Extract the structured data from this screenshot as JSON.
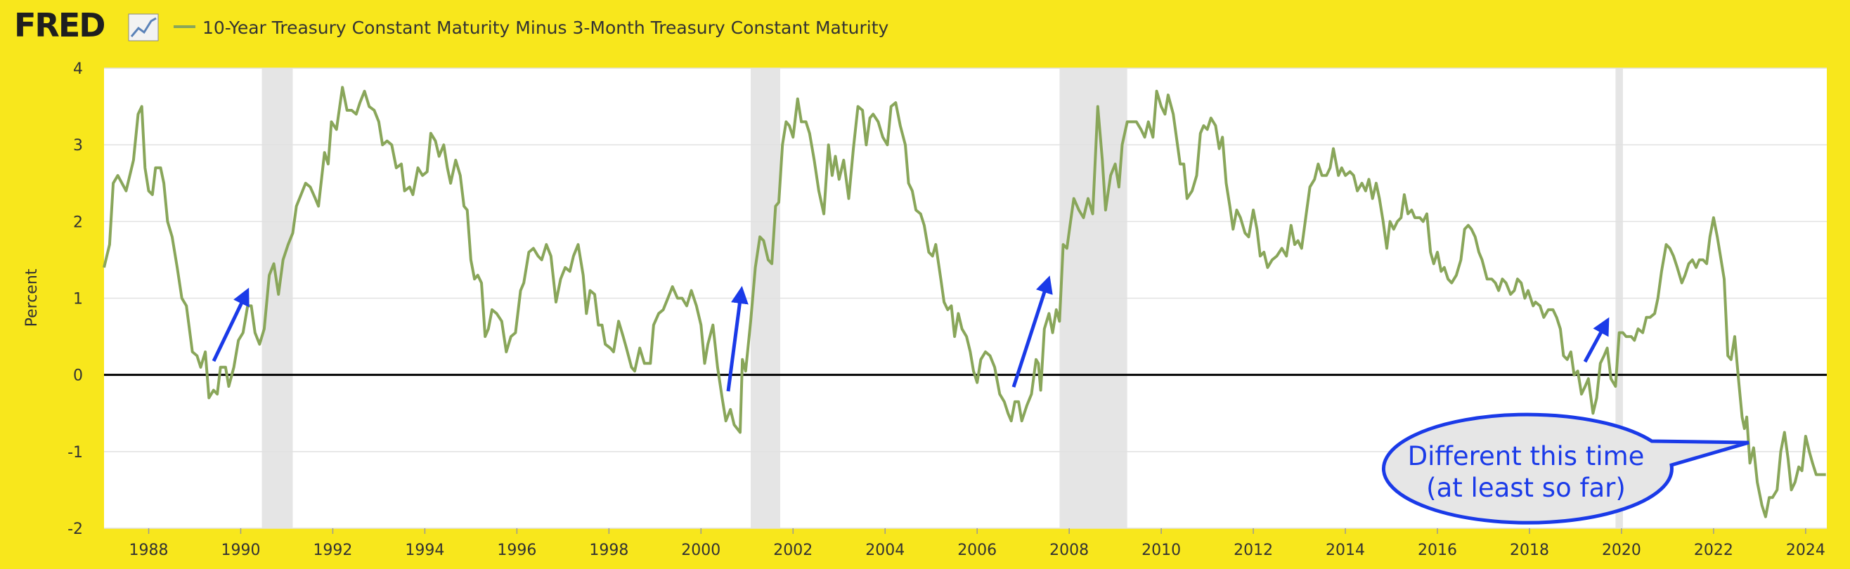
{
  "chart_data": {
    "type": "line",
    "logo": "FRED",
    "ylabel": "Percent",
    "xlim": [
      1987.03,
      2024.46
    ],
    "ylim": [
      -2,
      4
    ],
    "xticks": [
      1988,
      1990,
      1992,
      1994,
      1996,
      1998,
      2000,
      2002,
      2004,
      2006,
      2008,
      2010,
      2012,
      2014,
      2016,
      2018,
      2020,
      2022,
      2024
    ],
    "yticks": [
      -2,
      -1,
      0,
      1,
      2,
      3,
      4
    ],
    "grid": true,
    "recessions": [
      [
        1990.46,
        1991.13
      ],
      [
        2001.08,
        2001.72
      ],
      [
        2007.79,
        2009.26
      ],
      [
        2019.87,
        2020.03
      ]
    ],
    "annotations": [
      "Different this time",
      "(at least so far)"
    ],
    "series": [
      {
        "name": "10-Year Treasury Constant Maturity Minus 3-Month Treasury Constant Maturity",
        "color": "#89a65a",
        "x": [
          1987.03,
          1987.15,
          1987.23,
          1987.33,
          1987.51,
          1987.67,
          1987.77,
          1987.85,
          1987.92,
          1988.0,
          1988.08,
          1988.15,
          1988.26,
          1988.33,
          1988.41,
          1988.51,
          1988.62,
          1988.72,
          1988.82,
          1988.95,
          1989.05,
          1989.13,
          1989.23,
          1989.31,
          1989.41,
          1989.49,
          1989.56,
          1989.67,
          1989.74,
          1989.85,
          1989.95,
          1990.05,
          1990.15,
          1990.23,
          1990.31,
          1990.41,
          1990.51,
          1990.62,
          1990.72,
          1990.82,
          1990.92,
          1991.03,
          1991.13,
          1991.21,
          1991.31,
          1991.41,
          1991.51,
          1991.62,
          1991.69,
          1991.82,
          1991.9,
          1991.97,
          1992.08,
          1992.21,
          1992.31,
          1992.41,
          1992.51,
          1992.59,
          1992.69,
          1992.79,
          1992.9,
          1993.0,
          1993.08,
          1993.18,
          1993.28,
          1993.38,
          1993.49,
          1993.56,
          1993.67,
          1993.74,
          1993.85,
          1993.95,
          1994.05,
          1994.13,
          1994.23,
          1994.31,
          1994.41,
          1994.49,
          1994.56,
          1994.67,
          1994.77,
          1994.85,
          1994.92,
          1995.0,
          1995.08,
          1995.15,
          1995.23,
          1995.31,
          1995.38,
          1995.46,
          1995.56,
          1995.67,
          1995.77,
          1995.87,
          1995.97,
          1996.08,
          1996.15,
          1996.26,
          1996.36,
          1996.46,
          1996.54,
          1996.64,
          1996.74,
          1996.85,
          1996.95,
          1997.05,
          1997.15,
          1997.23,
          1997.33,
          1997.44,
          1997.51,
          1997.59,
          1997.69,
          1997.77,
          1997.85,
          1997.92,
          1998.03,
          1998.1,
          1998.21,
          1998.31,
          1998.38,
          1998.49,
          1998.56,
          1998.67,
          1998.77,
          1998.9,
          1998.97,
          1999.08,
          1999.18,
          1999.28,
          1999.38,
          1999.49,
          1999.59,
          1999.69,
          1999.79,
          1999.9,
          2000.0,
          2000.08,
          2000.15,
          2000.26,
          2000.36,
          2000.46,
          2000.54,
          2000.64,
          2000.72,
          2000.85,
          2000.9,
          2000.97,
          2001.08,
          2001.18,
          2001.28,
          2001.36,
          2001.46,
          2001.54,
          2001.62,
          2001.69,
          2001.77,
          2001.85,
          2001.92,
          2002.0,
          2002.1,
          2002.18,
          2002.28,
          2002.36,
          2002.46,
          2002.56,
          2002.67,
          2002.77,
          2002.85,
          2002.92,
          2003.0,
          2003.1,
          2003.21,
          2003.31,
          2003.41,
          2003.51,
          2003.59,
          2003.67,
          2003.74,
          2003.85,
          2003.95,
          2004.05,
          2004.13,
          2004.23,
          2004.33,
          2004.44,
          2004.51,
          2004.59,
          2004.67,
          2004.77,
          2004.85,
          2004.95,
          2005.03,
          2005.1,
          2005.21,
          2005.28,
          2005.36,
          2005.44,
          2005.51,
          2005.59,
          2005.67,
          2005.77,
          2005.85,
          2005.92,
          2006.0,
          2006.08,
          2006.18,
          2006.28,
          2006.38,
          2006.49,
          2006.59,
          2006.67,
          2006.74,
          2006.82,
          2006.9,
          2006.97,
          2007.08,
          2007.18,
          2007.28,
          2007.33,
          2007.38,
          2007.46,
          2007.56,
          2007.64,
          2007.72,
          2007.79,
          2007.87,
          2007.95,
          2008.03,
          2008.1,
          2008.21,
          2008.31,
          2008.41,
          2008.51,
          2008.62,
          2008.72,
          2008.79,
          2008.9,
          2009.0,
          2009.08,
          2009.15,
          2009.26,
          2009.36,
          2009.46,
          2009.56,
          2009.64,
          2009.72,
          2009.82,
          2009.9,
          2010.0,
          2010.08,
          2010.15,
          2010.26,
          2010.33,
          2010.41,
          2010.49,
          2010.56,
          2010.67,
          2010.77,
          2010.85,
          2010.92,
          2011.0,
          2011.08,
          2011.18,
          2011.26,
          2011.33,
          2011.41,
          2011.49,
          2011.56,
          2011.64,
          2011.72,
          2011.82,
          2011.9,
          2012.0,
          2012.08,
          2012.15,
          2012.23,
          2012.31,
          2012.41,
          2012.51,
          2012.62,
          2012.72,
          2012.82,
          2012.9,
          2012.97,
          2013.05,
          2013.15,
          2013.23,
          2013.33,
          2013.41,
          2013.49,
          2013.59,
          2013.67,
          2013.74,
          2013.85,
          2013.92,
          2014.0,
          2014.1,
          2014.18,
          2014.26,
          2014.36,
          2014.44,
          2014.51,
          2014.59,
          2014.67,
          2014.74,
          2014.82,
          2014.9,
          2014.97,
          2015.05,
          2015.13,
          2015.21,
          2015.28,
          2015.36,
          2015.44,
          2015.51,
          2015.62,
          2015.69,
          2015.77,
          2015.85,
          2015.92,
          2016.0,
          2016.08,
          2016.15,
          2016.23,
          2016.31,
          2016.41,
          2016.51,
          2016.59,
          2016.67,
          2016.74,
          2016.82,
          2016.9,
          2016.97,
          2017.08,
          2017.18,
          2017.26,
          2017.33,
          2017.41,
          2017.49,
          2017.59,
          2017.67,
          2017.74,
          2017.82,
          2017.9,
          2017.97,
          2018.08,
          2018.13,
          2018.23,
          2018.31,
          2018.41,
          2018.51,
          2018.59,
          2018.67,
          2018.74,
          2018.82,
          2018.9,
          2018.97,
          2019.05,
          2019.13,
          2019.21,
          2019.28,
          2019.38,
          2019.46,
          2019.54,
          2019.62,
          2019.69,
          2019.77,
          2019.87,
          2019.95,
          2020.03,
          2020.1,
          2020.21,
          2020.28,
          2020.36,
          2020.46,
          2020.54,
          2020.62,
          2020.72,
          2020.79,
          2020.87,
          2020.97,
          2021.05,
          2021.13,
          2021.21,
          2021.31,
          2021.38,
          2021.46,
          2021.54,
          2021.62,
          2021.69,
          2021.77,
          2021.85,
          2021.92,
          2022.0,
          2022.08,
          2022.15,
          2022.23,
          2022.31,
          2022.38,
          2022.46,
          2022.54,
          2022.62,
          2022.67,
          2022.72,
          2022.79,
          2022.87,
          2022.95,
          2023.05,
          2023.13,
          2023.21,
          2023.28,
          2023.38,
          2023.46,
          2023.54,
          2023.62,
          2023.69,
          2023.77,
          2023.85,
          2023.92,
          2024.0,
          2024.08,
          2024.15,
          2024.23,
          2024.33,
          2024.44
        ],
        "values": [
          1.4,
          1.7,
          2.5,
          2.6,
          2.4,
          2.8,
          3.4,
          3.5,
          2.7,
          2.4,
          2.35,
          2.7,
          2.7,
          2.5,
          2.0,
          1.8,
          1.4,
          1.0,
          0.9,
          0.3,
          0.25,
          0.1,
          0.3,
          -0.3,
          -0.2,
          -0.25,
          0.1,
          0.1,
          -0.15,
          0.1,
          0.45,
          0.55,
          0.9,
          0.9,
          0.55,
          0.4,
          0.6,
          1.3,
          1.45,
          1.05,
          1.5,
          1.7,
          1.85,
          2.2,
          2.35,
          2.5,
          2.45,
          2.3,
          2.2,
          2.9,
          2.75,
          3.3,
          3.2,
          3.75,
          3.45,
          3.45,
          3.4,
          3.55,
          3.7,
          3.5,
          3.45,
          3.3,
          3.0,
          3.05,
          3.0,
          2.7,
          2.75,
          2.4,
          2.45,
          2.35,
          2.7,
          2.6,
          2.65,
          3.15,
          3.05,
          2.85,
          3.0,
          2.7,
          2.5,
          2.8,
          2.6,
          2.2,
          2.15,
          1.5,
          1.25,
          1.3,
          1.2,
          0.5,
          0.6,
          0.85,
          0.8,
          0.7,
          0.3,
          0.5,
          0.55,
          1.1,
          1.2,
          1.6,
          1.65,
          1.55,
          1.5,
          1.7,
          1.55,
          0.95,
          1.25,
          1.4,
          1.35,
          1.55,
          1.7,
          1.3,
          0.8,
          1.1,
          1.05,
          0.65,
          0.65,
          0.4,
          0.35,
          0.3,
          0.7,
          0.5,
          0.35,
          0.1,
          0.05,
          0.35,
          0.15,
          0.15,
          0.65,
          0.8,
          0.85,
          1.0,
          1.15,
          1.0,
          1.0,
          0.9,
          1.1,
          0.9,
          0.65,
          0.15,
          0.4,
          0.65,
          0.1,
          -0.3,
          -0.6,
          -0.45,
          -0.65,
          -0.75,
          0.2,
          0.05,
          0.7,
          1.4,
          1.8,
          1.75,
          1.5,
          1.45,
          2.2,
          2.25,
          3.0,
          3.3,
          3.25,
          3.1,
          3.6,
          3.3,
          3.3,
          3.15,
          2.8,
          2.4,
          2.1,
          3.0,
          2.6,
          2.85,
          2.55,
          2.8,
          2.3,
          2.95,
          3.5,
          3.45,
          3.0,
          3.35,
          3.4,
          3.3,
          3.1,
          3.0,
          3.5,
          3.55,
          3.25,
          3.0,
          2.5,
          2.4,
          2.15,
          2.1,
          1.95,
          1.6,
          1.55,
          1.7,
          1.25,
          0.95,
          0.85,
          0.9,
          0.5,
          0.8,
          0.6,
          0.5,
          0.3,
          0.05,
          -0.1,
          0.2,
          0.3,
          0.25,
          0.1,
          -0.25,
          -0.35,
          -0.5,
          -0.6,
          -0.35,
          -0.35,
          -0.6,
          -0.4,
          -0.25,
          0.2,
          0.15,
          -0.2,
          0.6,
          0.8,
          0.55,
          0.85,
          0.7,
          1.7,
          1.65,
          2.0,
          2.3,
          2.15,
          2.05,
          2.3,
          2.1,
          3.5,
          2.8,
          2.15,
          2.6,
          2.75,
          2.45,
          3.0,
          3.3,
          3.3,
          3.3,
          3.2,
          3.1,
          3.3,
          3.1,
          3.7,
          3.5,
          3.4,
          3.65,
          3.4,
          3.1,
          2.75,
          2.75,
          2.3,
          2.4,
          2.6,
          3.15,
          3.25,
          3.2,
          3.35,
          3.25,
          2.95,
          3.1,
          2.5,
          2.2,
          1.9,
          2.15,
          2.05,
          1.85,
          1.8,
          2.15,
          1.9,
          1.55,
          1.6,
          1.4,
          1.5,
          1.55,
          1.65,
          1.55,
          1.95,
          1.7,
          1.75,
          1.65,
          2.1,
          2.45,
          2.55,
          2.75,
          2.6,
          2.6,
          2.7,
          2.95,
          2.6,
          2.7,
          2.6,
          2.65,
          2.6,
          2.4,
          2.5,
          2.4,
          2.55,
          2.3,
          2.5,
          2.3,
          2.0,
          1.65,
          2.0,
          1.9,
          2.0,
          2.05,
          2.35,
          2.1,
          2.15,
          2.05,
          2.05,
          2.0,
          2.1,
          1.6,
          1.45,
          1.6,
          1.35,
          1.4,
          1.25,
          1.2,
          1.3,
          1.5,
          1.9,
          1.95,
          1.9,
          1.8,
          1.6,
          1.5,
          1.25,
          1.25,
          1.2,
          1.1,
          1.25,
          1.2,
          1.05,
          1.1,
          1.25,
          1.2,
          1.0,
          1.1,
          0.9,
          0.95,
          0.9,
          0.75,
          0.85,
          0.85,
          0.75,
          0.6,
          0.25,
          0.2,
          0.3,
          0.0,
          0.05,
          -0.25,
          -0.15,
          -0.05,
          -0.5,
          -0.3,
          0.15,
          0.25,
          0.35,
          -0.05,
          -0.15,
          0.55,
          0.55,
          0.5,
          0.5,
          0.45,
          0.6,
          0.55,
          0.75,
          0.75,
          0.8,
          1.0,
          1.35,
          1.7,
          1.65,
          1.55,
          1.4,
          1.2,
          1.3,
          1.45,
          1.5,
          1.4,
          1.5,
          1.5,
          1.45,
          1.8,
          2.05,
          1.8,
          1.55,
          1.25,
          0.25,
          0.2,
          0.5,
          -0.05,
          -0.55,
          -0.7,
          -0.55,
          -1.15,
          -0.95,
          -1.4,
          -1.7,
          -1.85,
          -1.6,
          -1.6,
          -1.5,
          -1.0,
          -0.75,
          -1.1,
          -1.5,
          -1.4,
          -1.2,
          -1.25,
          -0.8,
          -1.0,
          -1.15,
          -1.3,
          -1.3,
          -1.3
        ]
      }
    ]
  }
}
